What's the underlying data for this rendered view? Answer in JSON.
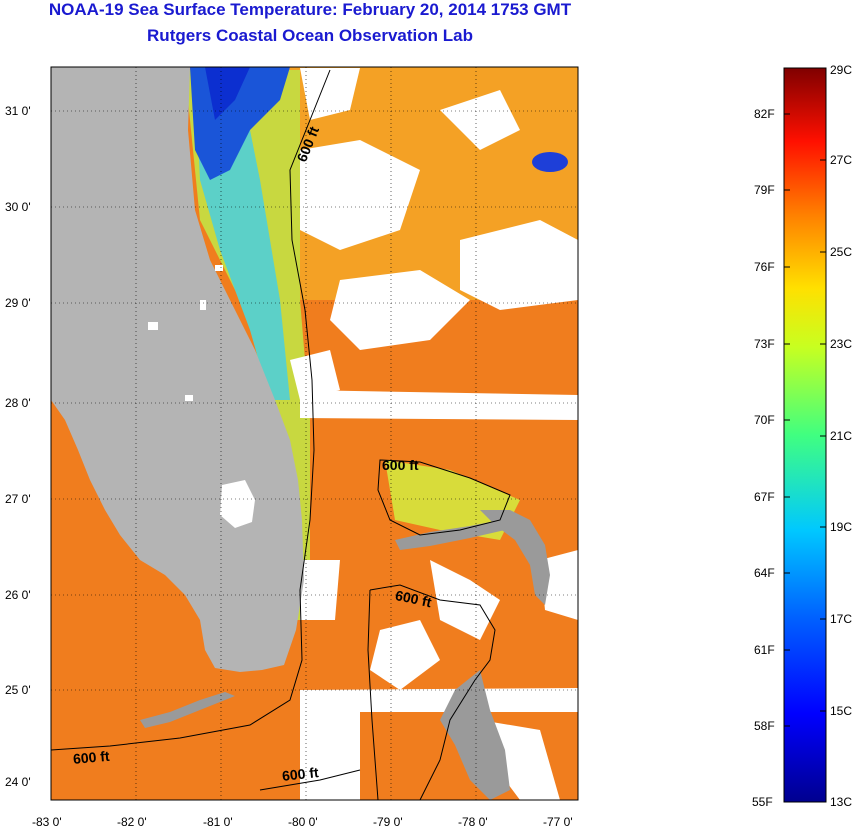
{
  "title_line1": "NOAA-19 Sea Surface Temperature:  February 20, 2014 1753 GMT",
  "title_line2": "Rutgers Coastal Ocean Observation Lab",
  "map": {
    "lon_labels": [
      "-83 0'",
      "-82 0'",
      "-81 0'",
      "-80 0'",
      "-79 0'",
      "-78 0'",
      "-77 0'"
    ],
    "lat_labels": [
      "31 0'",
      "30 0'",
      "29 0'",
      "28 0'",
      "27 0'",
      "26 0'",
      "25 0'",
      "24 0'"
    ],
    "contour_label": "600 ft",
    "land_color": "#b4b4b4",
    "cloud_color": "#ffffff"
  },
  "colorbar": {
    "celsius_labels": [
      "29C",
      "27C",
      "25C",
      "23C",
      "21C",
      "19C",
      "17C",
      "15C",
      "13C"
    ],
    "fahrenheit_labels": [
      "82F",
      "79F",
      "76F",
      "73F",
      "70F",
      "67F",
      "64F",
      "61F",
      "58F",
      "55F"
    ],
    "range_c": [
      13,
      29
    ]
  }
}
